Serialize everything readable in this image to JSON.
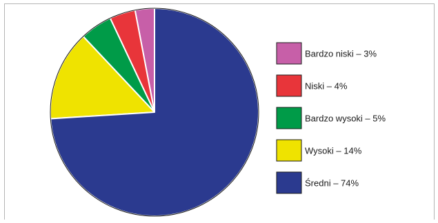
{
  "chart_data": {
    "type": "pie",
    "title": "",
    "slices": [
      {
        "label": "Bardzo niski – 3%",
        "value": 3,
        "color": "#c75fa8"
      },
      {
        "label": "Niski – 4%",
        "value": 4,
        "color": "#e8353a"
      },
      {
        "label": "Bardzo wysoki – 5%",
        "value": 5,
        "color": "#009b48"
      },
      {
        "label": "Wysoki – 14%",
        "value": 14,
        "color": "#efe300"
      },
      {
        "label": "Średni – 74%",
        "value": 74,
        "color": "#2b3a8f"
      }
    ],
    "legend_position": "right",
    "start_angle": "12 o'clock",
    "direction": "counter-clockwise"
  }
}
